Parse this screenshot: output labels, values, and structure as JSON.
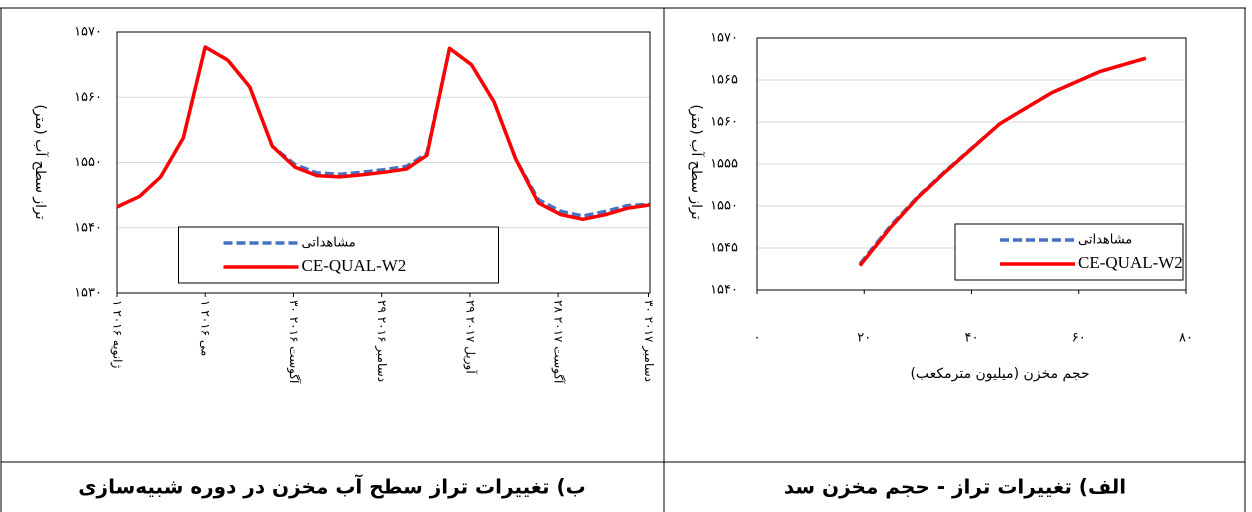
{
  "chart_data": [
    {
      "type": "line",
      "y_label": "تراز سطح آب (متر)",
      "x": [
        "2016-01-01",
        "2016-02-01",
        "2016-03-01",
        "2016-04-01",
        "2016-05-01",
        "2016-06-01",
        "2016-07-01",
        "2016-08-01",
        "2016-09-01",
        "2016-10-01",
        "2016-11-01",
        "2016-12-01",
        "2017-01-01",
        "2017-02-01",
        "2017-03-01",
        "2017-04-01",
        "2017-05-01",
        "2017-06-01",
        "2017-07-01",
        "2017-08-01",
        "2017-09-01",
        "2017-10-01",
        "2017-11-01",
        "2017-12-01",
        "2018-01-01"
      ],
      "series": [
        {
          "name": "مشاهداتی",
          "color": "#4472c4",
          "linestyle": "dashed",
          "values": [
            1543.2,
            1544.8,
            1547.8,
            1553.8,
            1567.7,
            1565.7,
            1561.6,
            1552.5,
            1549.7,
            1548.4,
            1548.2,
            1548.5,
            1548.9,
            1549.4,
            1551.4,
            1567.5,
            1565.0,
            1559.3,
            1550.5,
            1544.3,
            1542.5,
            1541.8,
            1542.5,
            1543.4,
            1543.6
          ]
        },
        {
          "name": "CE-QUAL-W2",
          "color": "#ff0000",
          "linestyle": "solid",
          "values": [
            1543.2,
            1544.8,
            1547.8,
            1553.8,
            1567.7,
            1565.7,
            1561.6,
            1552.5,
            1549.3,
            1548.0,
            1547.8,
            1548.1,
            1548.5,
            1549.0,
            1551.1,
            1567.5,
            1565.0,
            1559.3,
            1550.5,
            1543.8,
            1542.0,
            1541.3,
            1542.0,
            1543.0,
            1543.5
          ]
        }
      ],
      "xlim": [
        "2016-01-01",
        "2018-01-01"
      ],
      "xticks": [
        {
          "value": "2016-01-01",
          "label": "۱ ژانویه ۲۰۱۶"
        },
        {
          "value": "2016-05-01",
          "label": "۱ می ۲۰۱۶"
        },
        {
          "value": "2016-08-30",
          "label": "۳۰ آگوست ۲۰۱۶"
        },
        {
          "value": "2016-12-29",
          "label": "۲۹ دسامبر ۲۰۱۶"
        },
        {
          "value": "2017-04-29",
          "label": "۲۹ آوریل ۲۰۱۷"
        },
        {
          "value": "2017-08-28",
          "label": "۲۸ آگوست ۲۰۱۷"
        },
        {
          "value": "2017-12-30",
          "label": "۳۰ دسامبر ۲۰۱۷"
        }
      ],
      "ylim": [
        1530,
        1570
      ],
      "yticks": [
        {
          "value": 1530,
          "label": "۱۵۳۰"
        },
        {
          "value": 1540,
          "label": "۱۵۴۰"
        },
        {
          "value": 1550,
          "label": "۱۵۵۰"
        },
        {
          "value": 1560,
          "label": "۱۵۶۰"
        },
        {
          "value": 1570,
          "label": "۱۵۷۰"
        }
      ],
      "grid": true,
      "legend": "lower center"
    },
    {
      "type": "line",
      "x_label": "حجم مخزن (میلیون مترمکعب)",
      "y_label": "تراز سطح آب (متر)",
      "x": [
        19.2,
        25,
        30,
        35,
        45.3,
        55,
        63.9,
        72.5
      ],
      "series": [
        {
          "name": "مشاهداتی",
          "color": "#4472c4",
          "linestyle": "dashed",
          "values": [
            1543.1,
            1547.7,
            1551.1,
            1554.1,
            1559.8,
            1563.5,
            1566.0,
            1567.6
          ]
        },
        {
          "name": "CE-QUAL-W2",
          "color": "#ff0000",
          "linestyle": "solid",
          "values": [
            1542.9,
            1547.5,
            1551.0,
            1554.0,
            1559.8,
            1563.5,
            1566.0,
            1567.6
          ]
        }
      ],
      "xlim": [
        0,
        80
      ],
      "xticks": [
        {
          "value": 0,
          "label": "۰"
        },
        {
          "value": 20,
          "label": "۲۰"
        },
        {
          "value": 40,
          "label": "۴۰"
        },
        {
          "value": 60,
          "label": "۶۰"
        },
        {
          "value": 80,
          "label": "۸۰"
        }
      ],
      "ylim": [
        1540,
        1570
      ],
      "yticks": [
        {
          "value": 1540,
          "label": "۱۵۴۰"
        },
        {
          "value": 1545,
          "label": "۱۵۴۵"
        },
        {
          "value": 1550,
          "label": "۱۵۵۰"
        },
        {
          "value": 1555,
          "label": "۱۵۵۵"
        },
        {
          "value": 1560,
          "label": "۱۵۶۰"
        },
        {
          "value": 1565,
          "label": "۱۵۶۵"
        },
        {
          "value": 1570,
          "label": "۱۵۷۰"
        }
      ],
      "grid": true,
      "legend": "lower right"
    }
  ],
  "captions": [
    "ب) تغییرات تراز سطح آب مخزن در دوره شبیه‌سازی",
    "الف) تغییرات تراز - حجم مخزن سد"
  ]
}
